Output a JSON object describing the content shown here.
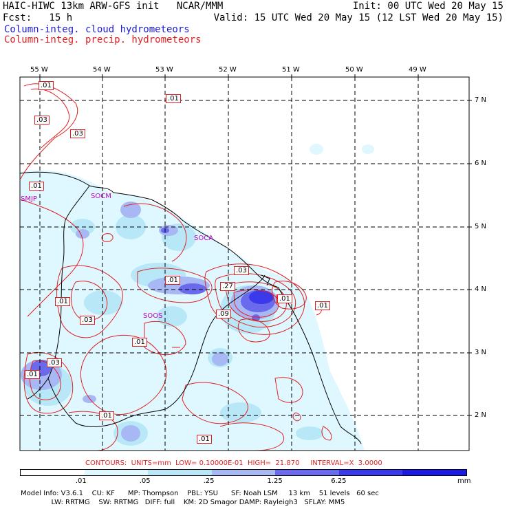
{
  "header": {
    "line1_left": "HAIC-HIWC 13km ARW-GFS init   NCAR/MMM",
    "line1_right": "Init: 00 UTC Wed 20 May 15",
    "line2_left": "Fcst:   15 h",
    "line2_right": "Valid: 15 UTC Wed 20 May 15 (12 LST Wed 20 May 15)",
    "field_cloud": "Column-integ. cloud hydrometeors",
    "field_precip": "Column-integ. precip. hydrometeors",
    "cloud_color": "#1a1ad8",
    "precip_color": "#e02020"
  },
  "axes": {
    "lon_labels": [
      "55 W",
      "54 W",
      "53 W",
      "52 W",
      "51 W",
      "50 W",
      "49 W"
    ],
    "lat_labels": [
      "7 N",
      "6 N",
      "5 N",
      "4 N",
      "3 N",
      "2 N"
    ]
  },
  "place_labels": [
    "SMJP",
    "SOCM",
    "SOCA",
    "SOOS"
  ],
  "place_color": "#c000c0",
  "contour_labels": [
    ".01",
    ".03",
    ".03",
    ".01",
    ".01",
    ".01",
    ".03",
    ".27",
    ".09",
    ".1",
    ".01",
    ".01",
    ".03",
    ".01",
    ".03",
    ".01",
    ".01",
    ".01",
    ".01"
  ],
  "contour_info": "CONTOURS:  UNITS=mm  LOW= 0.10000E-01  HIGH=  21.870     INTERVAL=X  3.0000",
  "colorbar": {
    "ticks": [
      ".01",
      ".05",
      ".25",
      "1.25",
      "6.25"
    ],
    "unit": "mm",
    "colors": [
      "#ffffff",
      "#dff8ff",
      "#b8e8f8",
      "#a8b8f4",
      "#6a6aec",
      "#3a3aea",
      "#1a1ae0"
    ]
  },
  "model_info": {
    "line1": "Model Info: V3.6.1    CU: KF      MP: Thompson    PBL: YSU      SF: Noah LSM     13 km    51 levels   60 sec",
    "line2": "              LW: RRTMG    SW: RRTMG   DIFF: full    KM: 2D Smagor DAMP: Rayleigh3   SFLAY: MM5"
  }
}
